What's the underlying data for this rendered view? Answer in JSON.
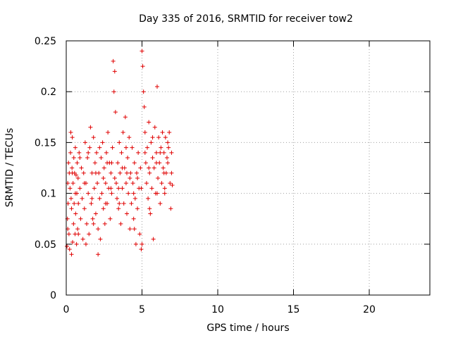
{
  "chart_data": {
    "type": "scatter",
    "title": "Day 335 of 2016, SRMTID for receiver tow2",
    "xlabel": "GPS time / hours",
    "ylabel": "SRMTID / TECUs",
    "xlim": [
      0,
      24
    ],
    "ylim": [
      0,
      0.25
    ],
    "xticks": [
      0,
      5,
      10,
      15,
      20
    ],
    "yticks": [
      0,
      0.05,
      0.1,
      0.15,
      0.2,
      0.25
    ],
    "xtick_labels": [
      "0",
      "5",
      "10",
      "15",
      "20"
    ],
    "ytick_labels": [
      "0",
      "0.05",
      "0.1",
      "0.15",
      "0.2",
      "0.25"
    ],
    "grid": true,
    "marker": "+",
    "series": [
      {
        "color": "#e00000",
        "points": [
          [
            0.05,
            0.048
          ],
          [
            0.08,
            0.075
          ],
          [
            0.1,
            0.11
          ],
          [
            0.12,
            0.09
          ],
          [
            0.15,
            0.13
          ],
          [
            0.18,
            0.06
          ],
          [
            0.2,
            0.12
          ],
          [
            0.22,
            0.045
          ],
          [
            0.25,
            0.105
          ],
          [
            0.28,
            0.14
          ],
          [
            0.3,
            0.16
          ],
          [
            0.32,
            0.095
          ],
          [
            0.35,
            0.085
          ],
          [
            0.38,
            0.125
          ],
          [
            0.4,
            0.155
          ],
          [
            0.42,
            0.052
          ],
          [
            0.45,
            0.11
          ],
          [
            0.48,
            0.07
          ],
          [
            0.5,
            0.135
          ],
          [
            0.52,
            0.09
          ],
          [
            0.55,
            0.12
          ],
          [
            0.58,
            0.06
          ],
          [
            0.6,
            0.145
          ],
          [
            0.62,
            0.08
          ],
          [
            0.65,
            0.118
          ],
          [
            0.68,
            0.05
          ],
          [
            0.7,
            0.1
          ],
          [
            0.72,
            0.13
          ],
          [
            0.75,
            0.065
          ],
          [
            0.78,
            0.115
          ],
          [
            0.8,
            0.09
          ],
          [
            0.85,
            0.14
          ],
          [
            0.9,
            0.105
          ],
          [
            0.95,
            0.075
          ],
          [
            1.0,
            0.125
          ],
          [
            1.05,
            0.095
          ],
          [
            1.1,
            0.055
          ],
          [
            1.15,
            0.12
          ],
          [
            1.2,
            0.085
          ],
          [
            1.25,
            0.15
          ],
          [
            1.3,
            0.11
          ],
          [
            1.35,
            0.07
          ],
          [
            1.4,
            0.135
          ],
          [
            1.45,
            0.1
          ],
          [
            1.5,
            0.06
          ],
          [
            1.55,
            0.145
          ],
          [
            1.6,
            0.165
          ],
          [
            1.65,
            0.09
          ],
          [
            1.7,
            0.12
          ],
          [
            1.75,
            0.075
          ],
          [
            1.8,
            0.155
          ],
          [
            1.85,
            0.105
          ],
          [
            1.9,
            0.13
          ],
          [
            1.95,
            0.08
          ],
          [
            2.0,
            0.14
          ],
          [
            2.05,
            0.11
          ],
          [
            2.1,
            0.065
          ],
          [
            2.15,
            0.12
          ],
          [
            2.2,
            0.095
          ],
          [
            2.25,
            0.055
          ],
          [
            2.3,
            0.135
          ],
          [
            2.35,
            0.1
          ],
          [
            2.4,
            0.15
          ],
          [
            2.45,
            0.085
          ],
          [
            2.5,
            0.125
          ],
          [
            2.55,
            0.07
          ],
          [
            2.6,
            0.11
          ],
          [
            2.65,
            0.14
          ],
          [
            2.7,
            0.09
          ],
          [
            2.75,
            0.16
          ],
          [
            2.8,
            0.105
          ],
          [
            2.85,
            0.13
          ],
          [
            2.9,
            0.075
          ],
          [
            2.95,
            0.12
          ],
          [
            3.0,
            0.1
          ],
          [
            3.05,
            0.145
          ],
          [
            3.1,
            0.23
          ],
          [
            3.15,
            0.2
          ],
          [
            3.2,
            0.22
          ],
          [
            3.25,
            0.18
          ],
          [
            3.3,
            0.11
          ],
          [
            3.35,
            0.095
          ],
          [
            3.4,
            0.13
          ],
          [
            3.45,
            0.085
          ],
          [
            3.5,
            0.15
          ],
          [
            3.55,
            0.12
          ],
          [
            3.6,
            0.07
          ],
          [
            3.65,
            0.14
          ],
          [
            3.7,
            0.105
          ],
          [
            3.75,
            0.16
          ],
          [
            3.8,
            0.09
          ],
          [
            3.85,
            0.125
          ],
          [
            3.9,
            0.175
          ],
          [
            3.95,
            0.11
          ],
          [
            4.0,
            0.08
          ],
          [
            4.05,
            0.135
          ],
          [
            4.1,
            0.1
          ],
          [
            4.15,
            0.155
          ],
          [
            4.2,
            0.065
          ],
          [
            4.25,
            0.12
          ],
          [
            4.3,
            0.09
          ],
          [
            4.35,
            0.145
          ],
          [
            4.4,
            0.11
          ],
          [
            4.45,
            0.075
          ],
          [
            4.5,
            0.13
          ],
          [
            4.55,
            0.095
          ],
          [
            4.6,
            0.05
          ],
          [
            4.65,
            0.12
          ],
          [
            4.7,
            0.085
          ],
          [
            4.75,
            0.14
          ],
          [
            4.8,
            0.105
          ],
          [
            4.85,
            0.06
          ],
          [
            4.9,
            0.125
          ],
          [
            4.95,
            0.045
          ],
          [
            5.0,
            0.24
          ],
          [
            5.05,
            0.225
          ],
          [
            5.1,
            0.2
          ],
          [
            5.15,
            0.185
          ],
          [
            5.2,
            0.16
          ],
          [
            5.25,
            0.13
          ],
          [
            5.3,
            0.11
          ],
          [
            5.35,
            0.145
          ],
          [
            5.4,
            0.095
          ],
          [
            5.45,
            0.17
          ],
          [
            5.5,
            0.12
          ],
          [
            5.55,
            0.08
          ],
          [
            5.6,
            0.15
          ],
          [
            5.65,
            0.105
          ],
          [
            5.7,
            0.135
          ],
          [
            5.75,
            0.055
          ],
          [
            5.8,
            0.125
          ],
          [
            5.85,
            0.165
          ],
          [
            5.9,
            0.1
          ],
          [
            5.95,
            0.14
          ],
          [
            6.0,
            0.205
          ],
          [
            6.05,
            0.115
          ],
          [
            6.1,
            0.155
          ],
          [
            6.15,
            0.13
          ],
          [
            6.2,
            0.09
          ],
          [
            6.25,
            0.145
          ],
          [
            6.3,
            0.11
          ],
          [
            6.35,
            0.16
          ],
          [
            6.4,
            0.125
          ],
          [
            6.45,
            0.14
          ],
          [
            6.5,
            0.1
          ],
          [
            6.55,
            0.155
          ],
          [
            6.6,
            0.12
          ],
          [
            6.65,
            0.135
          ],
          [
            6.7,
            0.15
          ],
          [
            6.75,
            0.145
          ],
          [
            6.8,
            0.16
          ],
          [
            6.85,
            0.11
          ],
          [
            6.9,
            0.085
          ],
          [
            6.95,
            0.14
          ],
          [
            7.0,
            0.108
          ],
          [
            0.1,
            0.065
          ],
          [
            0.35,
            0.04
          ],
          [
            0.6,
            0.1
          ],
          [
            0.9,
            0.135
          ],
          [
            1.2,
            0.11
          ],
          [
            1.45,
            0.14
          ],
          [
            1.7,
            0.095
          ],
          [
            1.95,
            0.12
          ],
          [
            2.2,
            0.145
          ],
          [
            2.45,
            0.115
          ],
          [
            2.7,
            0.13
          ],
          [
            2.95,
            0.105
          ],
          [
            3.2,
            0.115
          ],
          [
            3.45,
            0.105
          ],
          [
            3.7,
            0.125
          ],
          [
            3.95,
            0.145
          ],
          [
            4.2,
            0.115
          ],
          [
            4.45,
            0.1
          ],
          [
            4.7,
            0.115
          ],
          [
            4.95,
            0.105
          ],
          [
            5.2,
            0.14
          ],
          [
            5.45,
            0.125
          ],
          [
            5.7,
            0.155
          ],
          [
            5.95,
            0.13
          ],
          [
            6.2,
            0.14
          ],
          [
            6.45,
            0.12
          ],
          [
            6.7,
            0.13
          ],
          [
            6.95,
            0.12
          ],
          [
            0.4,
            0.12
          ],
          [
            0.8,
            0.06
          ],
          [
            1.3,
            0.05
          ],
          [
            1.8,
            0.07
          ],
          [
            2.1,
            0.04
          ],
          [
            2.6,
            0.09
          ],
          [
            3.0,
            0.13
          ],
          [
            3.5,
            0.09
          ],
          [
            4.0,
            0.12
          ],
          [
            4.5,
            0.065
          ],
          [
            5.0,
            0.05
          ],
          [
            5.5,
            0.085
          ],
          [
            6.0,
            0.1
          ],
          [
            6.5,
            0.105
          ]
        ]
      }
    ]
  }
}
